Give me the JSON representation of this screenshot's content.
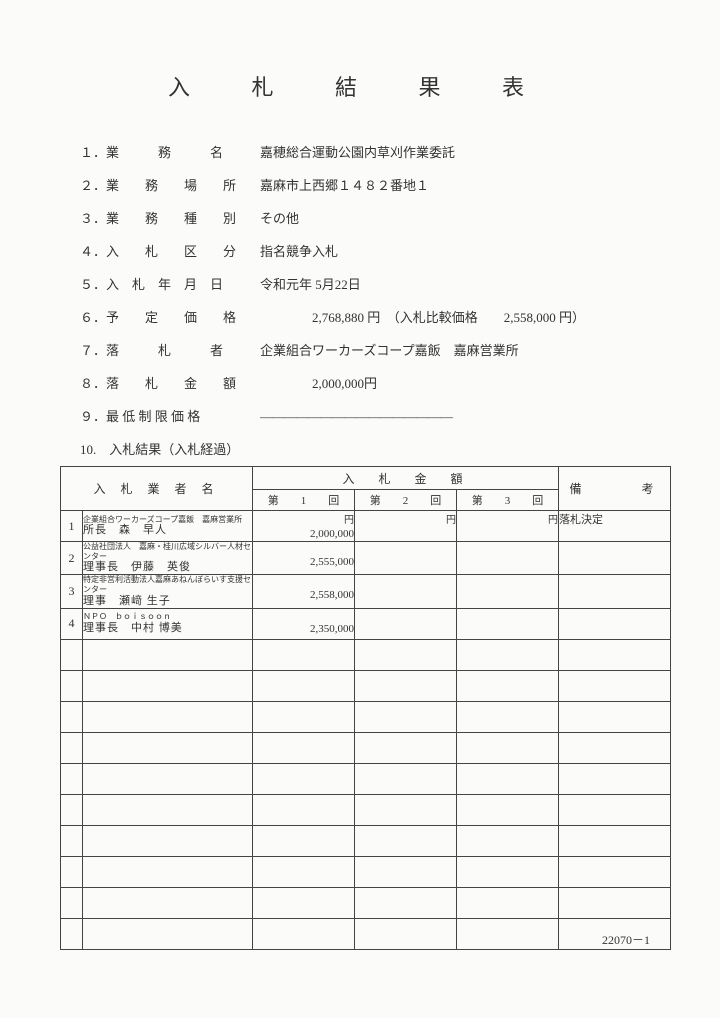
{
  "title": "入 札 結 果 表",
  "info": [
    {
      "label": "１．業　　　務　　　名",
      "value": "嘉穂総合運動公園内草刈作業委託"
    },
    {
      "label": "２．業　　務　　場　　所",
      "value": "嘉麻市上西郷１４８２番地１"
    },
    {
      "label": "３．業　　務　　種　　別",
      "value": "その他"
    },
    {
      "label": "４．入　　札　　区　　分",
      "value": "指名競争入札"
    },
    {
      "label": "５．入　札　年　月　日",
      "value": "令和元年 5月22日"
    },
    {
      "label": "６．予　　定　　価　　格",
      "value": "　　　　2,768,880 円　（入札比較価格　　2,558,000 円）"
    },
    {
      "label": "７．落　　　札　　　者",
      "value": "企業組合ワーカーズコープ嘉飯　嘉麻営業所"
    },
    {
      "label": "８．落　　札　　金　　額",
      "value": "　　　　2,000,000円"
    },
    {
      "label": "９．最 低 制 限 価 格",
      "value": "――――――――――――――――"
    }
  ],
  "resultsLabel": "10.　入札結果（入札経過）",
  "tableHeader": {
    "name": "入 札 業 者 名",
    "amount": "入　札　金　額",
    "round1": "第　　1　　回",
    "round2": "第　　2　　回",
    "round3": "第　　3　　回",
    "remarks": "備　　　考"
  },
  "yen": "円",
  "bidders": [
    {
      "no": "1",
      "org": "企業組合ワーカーズコープ嘉飯　嘉麻営業所",
      "rep": "所長　森　早人",
      "r1": "2,000,000",
      "remark": "落札決定"
    },
    {
      "no": "2",
      "org": "公益社団法人　嘉麻・桂川広域シルバー人材センター",
      "rep": "理事長　伊藤　英俊",
      "r1": "2,555,000",
      "remark": ""
    },
    {
      "no": "3",
      "org": "特定非営利活動法人嘉麻あねんぼらいす支援センター",
      "rep": "理事　瀬﨑 生子",
      "r1": "2,558,000",
      "remark": ""
    },
    {
      "no": "4",
      "org": "ＮＰＯ　ｂｏｉｓｏｏｎ",
      "rep": "理事長　中村 博美",
      "r1": "2,350,000",
      "remark": ""
    }
  ],
  "emptyRows": 10,
  "footerCode": "22070－1"
}
